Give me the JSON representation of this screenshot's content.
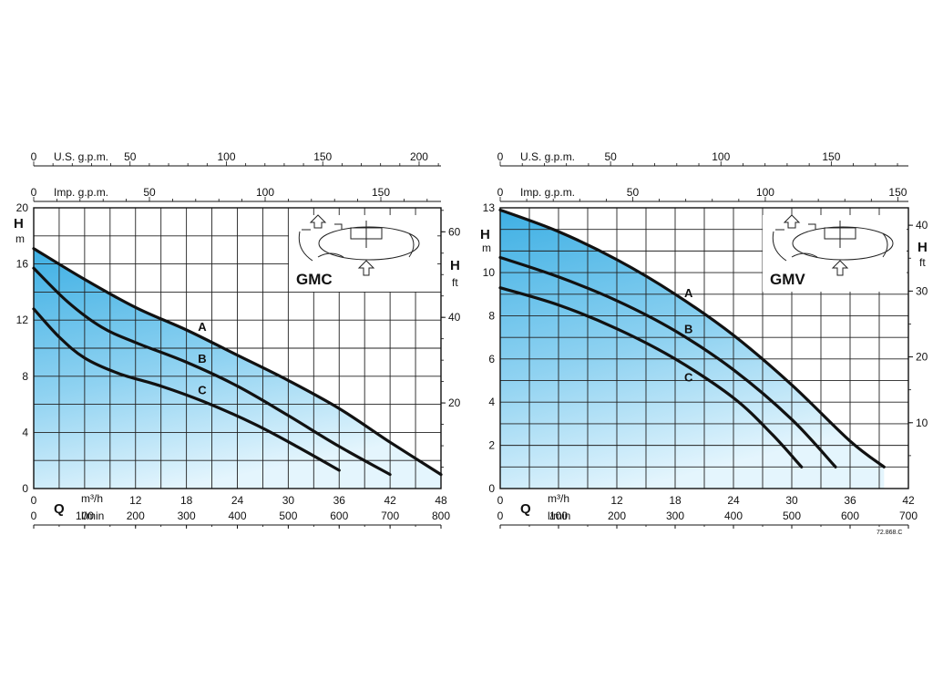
{
  "chart_data": [
    {
      "type": "line",
      "model": "GMC",
      "x_unit_label": "m³/h",
      "x_unit_label_2": "l/min",
      "x_symbol": "Q",
      "y_symbol": "H",
      "y_unit": "m",
      "y2_symbol": "H",
      "y2_unit": "ft",
      "xlim": [
        0,
        48
      ],
      "ylim": [
        0,
        20
      ],
      "y2lim": [
        0,
        65.6
      ],
      "x_ticks": [
        0,
        6,
        12,
        18,
        24,
        30,
        36,
        42,
        48
      ],
      "x_tick_labels": [
        "0",
        "",
        "12",
        "18",
        "24",
        "30",
        "36",
        "42",
        "48"
      ],
      "lmin_ticks": [
        0,
        100,
        200,
        300,
        400,
        500,
        600,
        700,
        800
      ],
      "lmin_tick_labels": [
        "0",
        "100",
        "200",
        "300",
        "400",
        "500",
        "600",
        "700",
        "800"
      ],
      "y_ticks": [
        0,
        4,
        8,
        12,
        16,
        20
      ],
      "y2_ticks": [
        20,
        40,
        60
      ],
      "top_axis_1": {
        "label": "U.S. g.p.m.",
        "ticks": [
          0,
          50,
          100,
          150,
          200
        ]
      },
      "top_axis_2": {
        "label": "Imp. g.p.m.",
        "ticks": [
          0,
          50,
          100,
          150
        ]
      },
      "grid": true,
      "series": [
        {
          "name": "A",
          "x": [
            0,
            6,
            12,
            18,
            24,
            30,
            36,
            42,
            48
          ],
          "y": [
            17.1,
            14.9,
            12.9,
            11.3,
            9.5,
            7.7,
            5.7,
            3.3,
            1.0
          ]
        },
        {
          "name": "B",
          "x": [
            0,
            4,
            8,
            12,
            18,
            24,
            30,
            36,
            42
          ],
          "y": [
            15.7,
            13.3,
            11.5,
            10.4,
            9.0,
            7.3,
            5.2,
            3.0,
            1.0
          ]
        },
        {
          "name": "C",
          "x": [
            0,
            3,
            6,
            10,
            15,
            20,
            26,
            31,
            36
          ],
          "y": [
            12.8,
            10.8,
            9.3,
            8.2,
            7.3,
            6.2,
            4.6,
            3.0,
            1.3
          ]
        }
      ]
    },
    {
      "type": "line",
      "model": "GMV",
      "x_unit_label": "m³/h",
      "x_unit_label_2": "l/min",
      "x_symbol": "Q",
      "y_symbol": "H",
      "y_unit": "m",
      "y2_symbol": "H",
      "y2_unit": "ft",
      "xlim": [
        0,
        42
      ],
      "ylim": [
        0,
        13
      ],
      "y2lim": [
        0,
        42.65
      ],
      "x_ticks": [
        0,
        6,
        12,
        18,
        24,
        30,
        36,
        42
      ],
      "x_tick_labels": [
        "0",
        "",
        "12",
        "18",
        "24",
        "30",
        "36",
        "42"
      ],
      "lmin_ticks": [
        0,
        100,
        200,
        300,
        400,
        500,
        600,
        700
      ],
      "lmin_tick_labels": [
        "0",
        "100",
        "200",
        "300",
        "400",
        "500",
        "600",
        "700"
      ],
      "y_ticks": [
        0,
        2,
        4,
        6,
        8,
        10,
        13
      ],
      "y2_ticks": [
        10,
        20,
        30,
        40
      ],
      "top_axis_1": {
        "label": "U.S. g.p.m.",
        "ticks": [
          0,
          50,
          100,
          150
        ]
      },
      "top_axis_2": {
        "label": "Imp. g.p.m.",
        "ticks": [
          0,
          50,
          100,
          150
        ]
      },
      "grid": true,
      "series": [
        {
          "name": "A",
          "x": [
            0,
            6,
            12,
            18,
            24,
            30,
            36,
            39.5
          ],
          "y": [
            12.9,
            11.9,
            10.6,
            9.0,
            7.1,
            4.8,
            2.2,
            1.0
          ]
        },
        {
          "name": "B",
          "x": [
            0,
            6,
            12,
            18,
            24,
            30,
            34.5
          ],
          "y": [
            10.7,
            9.8,
            8.7,
            7.3,
            5.5,
            3.2,
            1.0
          ]
        },
        {
          "name": "C",
          "x": [
            0,
            6,
            12,
            18,
            24,
            28,
            31
          ],
          "y": [
            9.3,
            8.5,
            7.4,
            6.0,
            4.2,
            2.5,
            1.0
          ]
        }
      ]
    }
  ],
  "figure_ref": "72.868.C"
}
